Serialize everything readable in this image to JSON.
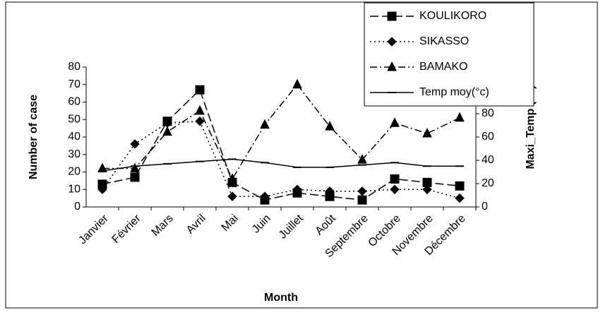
{
  "chart_data": {
    "type": "line",
    "xlabel": "Month",
    "ylabel": "Number of case",
    "y2label": "Maxi_Temp (°C)",
    "categories": [
      "Janvier",
      "Février",
      "Mars",
      "Avril",
      "Mai",
      "Juin",
      "Juillet",
      "Août",
      "Septembre",
      "Octobre",
      "Novembre",
      "Décembre"
    ],
    "series": [
      {
        "name": "KOULIKORO",
        "color": "#000000",
        "marker": "square",
        "dash": "12,5",
        "values": [
          13,
          17,
          49,
          67,
          14,
          4,
          8,
          6,
          4,
          16,
          14,
          12
        ]
      },
      {
        "name": "SIKASSO",
        "color": "#000000",
        "marker": "diamond",
        "dash": "2,4",
        "values": [
          10,
          36,
          48,
          49,
          6,
          6,
          10,
          9,
          9,
          10,
          10,
          5
        ]
      },
      {
        "name": "BAMAKO",
        "color": "#000000",
        "marker": "triangle",
        "dash": "10,4,2,4",
        "values": [
          22,
          22,
          43,
          55,
          16,
          47,
          70,
          46,
          27,
          48,
          42,
          51
        ]
      },
      {
        "name": "Temp moy(°c)",
        "color": "#000000",
        "marker": "dash",
        "dash": "none",
        "axis": "y2",
        "values": [
          31,
          35,
          37,
          39,
          41,
          38,
          34,
          34,
          36,
          38,
          35,
          35
        ]
      }
    ],
    "ylim": [
      0,
      80
    ],
    "yticks": [
      0,
      10,
      20,
      30,
      40,
      50,
      60,
      70,
      80
    ],
    "y2lim": [
      0,
      120
    ],
    "y2ticks": [
      0,
      20,
      40,
      60,
      80
    ],
    "legend": "top-right"
  }
}
